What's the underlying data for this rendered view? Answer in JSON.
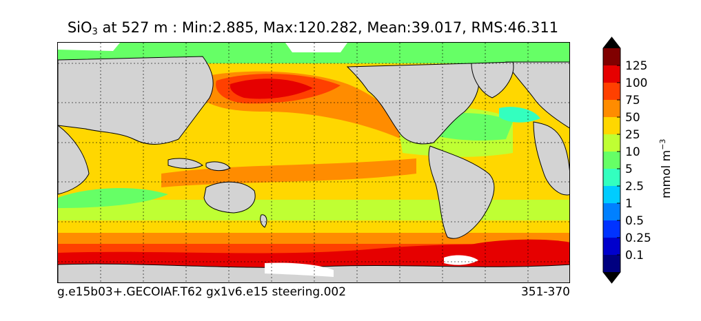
{
  "title": {
    "variable": "SiO",
    "subscript": "3",
    "rest": " at 527 m : Min:2.885, Max:120.282, Mean:39.017, RMS:46.311"
  },
  "footer": {
    "case": "g.e15b03+.GECOIAF.T62 gx1v6.e15 steering.002",
    "years": "351-370"
  },
  "colorbar": {
    "units_base": "mmol m",
    "units_exp": "−3",
    "labels": [
      "125",
      "100",
      "75",
      "50",
      "25",
      "10",
      "5",
      "2.5",
      "1",
      "0.5",
      "0.25",
      "0.1"
    ],
    "colors_top_to_bottom": [
      "#800000",
      "#e60000",
      "#ff4000",
      "#ff8c00",
      "#ffd700",
      "#bfff33",
      "#66ff66",
      "#33ffbf",
      "#00ccff",
      "#0080ff",
      "#0033ff",
      "#0000cc",
      "#000080"
    ],
    "extend": "both"
  },
  "map": {
    "land_color": "#d3d3d3",
    "missing_color": "#ffffff",
    "grid": true,
    "grid_style": "dotted"
  }
}
